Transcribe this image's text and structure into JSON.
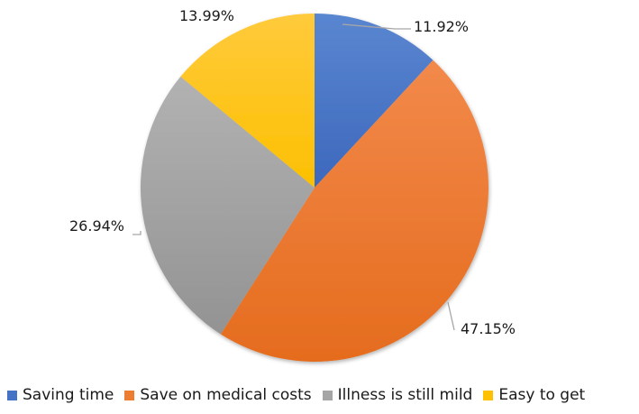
{
  "chart_data": {
    "type": "pie",
    "title": "",
    "categories": [
      "Saving time",
      "Save on medical costs",
      "Illness is still mild",
      "Easy to get"
    ],
    "values": [
      11.92,
      47.15,
      26.94,
      13.99
    ],
    "labels": [
      "11.92%",
      "47.15%",
      "26.94%",
      "13.99%"
    ],
    "colors": [
      "#4472c4",
      "#ed7d31",
      "#a5a5a5",
      "#ffc000"
    ],
    "start_angle_deg": 0,
    "direction": "clockwise",
    "legend_position": "bottom"
  },
  "legend": {
    "items": [
      {
        "label": "Saving time",
        "color": "#4472c4"
      },
      {
        "label": "Save on medical costs",
        "color": "#ed7d31"
      },
      {
        "label": "Illness is still mild",
        "color": "#a5a5a5"
      },
      {
        "label": "Easy to get",
        "color": "#ffc000"
      }
    ]
  }
}
